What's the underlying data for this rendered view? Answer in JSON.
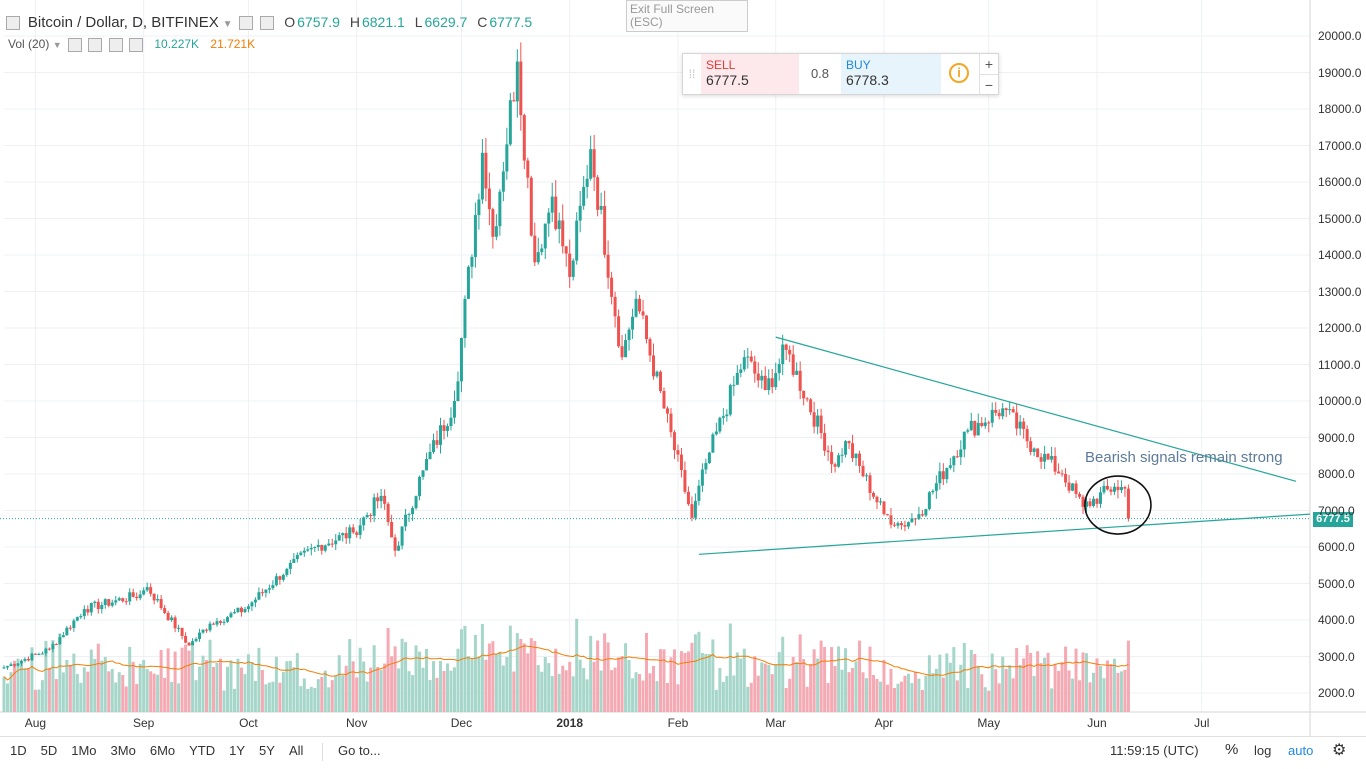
{
  "header": {
    "symbol": "Bitcoin / Dollar, D, BITFINEX",
    "open_key": "O",
    "open": "6757.9",
    "high_key": "H",
    "high": "6821.1",
    "low_key": "L",
    "low": "6629.7",
    "close_key": "C",
    "close": "6777.5"
  },
  "volume_legend": {
    "label": "Vol (20)",
    "vol": "10.227K",
    "ma": "21.721K"
  },
  "exit_fullscreen": {
    "line1": "Exit Full Screen",
    "line2": "(ESC)"
  },
  "trade": {
    "sell_label": "SELL",
    "sell_value": "6777.5",
    "spread": "0.8",
    "buy_label": "BUY",
    "buy_value": "6778.3",
    "plus": "+",
    "minus": "−",
    "info": "i"
  },
  "annotation": "Bearish signals remain strong",
  "price_tag": "6777.5",
  "bottombar": {
    "ranges": [
      "1D",
      "5D",
      "1Mo",
      "3Mo",
      "6Mo",
      "YTD",
      "1Y",
      "5Y",
      "All"
    ],
    "goto": "Go to...",
    "clock": "11:59:15 (UTC)",
    "percent": "%",
    "log": "log",
    "auto": "auto"
  },
  "colors": {
    "up": "#26a69a",
    "down": "#ef5350",
    "trend": "#26a69a",
    "ma": "#f57c00",
    "annotation_text": "#5d7b99"
  },
  "chart_data": {
    "type": "candlestick",
    "title": "Bitcoin / Dollar, D, BITFINEX",
    "ylim": [
      1500,
      20500
    ],
    "y_ticks": [
      2000,
      3000,
      4000,
      5000,
      6000,
      7000,
      8000,
      9000,
      10000,
      11000,
      12000,
      13000,
      14000,
      15000,
      16000,
      17000,
      18000,
      19000,
      20000
    ],
    "y_tick_labels": [
      "2000.0",
      "3000.0",
      "4000.0",
      "5000.0",
      "6000.0",
      "7000.0",
      "8000.0",
      "9000.0",
      "10000.0",
      "11000.0",
      "12000.0",
      "13000.0",
      "14000.0",
      "15000.0",
      "16000.0",
      "17000.0",
      "18000.0",
      "19000.0",
      "20000.0"
    ],
    "x_ticks": [
      {
        "label": "Aug",
        "date": "2017-08-01"
      },
      {
        "label": "Sep",
        "date": "2017-09-01"
      },
      {
        "label": "Oct",
        "date": "2017-10-01"
      },
      {
        "label": "Nov",
        "date": "2017-11-01"
      },
      {
        "label": "Dec",
        "date": "2017-12-01"
      },
      {
        "label": "2018",
        "date": "2018-01-01",
        "bold": true
      },
      {
        "label": "Feb",
        "date": "2018-02-01"
      },
      {
        "label": "Mar",
        "date": "2018-03-01"
      },
      {
        "label": "Apr",
        "date": "2018-04-01"
      },
      {
        "label": "May",
        "date": "2018-05-01"
      },
      {
        "label": "Jun",
        "date": "2018-06-01"
      },
      {
        "label": "Jul",
        "date": "2018-07-01"
      }
    ],
    "x_range": [
      "2017-07-23",
      "2018-08-01"
    ],
    "anchors": [
      {
        "date": "2017-07-23",
        "close": 2700
      },
      {
        "date": "2017-08-05",
        "close": 3200
      },
      {
        "date": "2017-08-15",
        "close": 4300
      },
      {
        "date": "2017-08-31",
        "close": 4700
      },
      {
        "date": "2017-09-02",
        "close": 4900
      },
      {
        "date": "2017-09-14",
        "close": 3300
      },
      {
        "date": "2017-09-20",
        "close": 3900
      },
      {
        "date": "2017-09-30",
        "close": 4300
      },
      {
        "date": "2017-10-12",
        "close": 5400
      },
      {
        "date": "2017-10-20",
        "close": 6000
      },
      {
        "date": "2017-10-31",
        "close": 6400
      },
      {
        "date": "2017-11-08",
        "close": 7400
      },
      {
        "date": "2017-11-12",
        "close": 5900
      },
      {
        "date": "2017-11-20",
        "close": 8100
      },
      {
        "date": "2017-11-29",
        "close": 10000
      },
      {
        "date": "2017-12-07",
        "close": 16800
      },
      {
        "date": "2017-12-10",
        "close": 14500
      },
      {
        "date": "2017-12-17",
        "close": 19300
      },
      {
        "date": "2017-12-22",
        "close": 13800
      },
      {
        "date": "2017-12-27",
        "close": 15600
      },
      {
        "date": "2018-01-01",
        "close": 13400
      },
      {
        "date": "2018-01-07",
        "close": 16900
      },
      {
        "date": "2018-01-16",
        "close": 11200
      },
      {
        "date": "2018-01-20",
        "close": 12800
      },
      {
        "date": "2018-02-05",
        "close": 6800
      },
      {
        "date": "2018-02-09",
        "close": 8300
      },
      {
        "date": "2018-02-20",
        "close": 11200
      },
      {
        "date": "2018-02-26",
        "close": 10300
      },
      {
        "date": "2018-03-04",
        "close": 11400
      },
      {
        "date": "2018-03-18",
        "close": 8200
      },
      {
        "date": "2018-03-21",
        "close": 8900
      },
      {
        "date": "2018-04-01",
        "close": 6900
      },
      {
        "date": "2018-04-06",
        "close": 6600
      },
      {
        "date": "2018-04-11",
        "close": 6900
      },
      {
        "date": "2018-04-25",
        "close": 9200
      },
      {
        "date": "2018-05-05",
        "close": 9800
      },
      {
        "date": "2018-05-14",
        "close": 8700
      },
      {
        "date": "2018-05-22",
        "close": 8000
      },
      {
        "date": "2018-05-28",
        "close": 7100
      },
      {
        "date": "2018-06-06",
        "close": 7650
      },
      {
        "date": "2018-06-09",
        "close": 7600
      },
      {
        "date": "2018-06-10",
        "close": 6777.5
      }
    ],
    "volume": {
      "label": "Vol (20)",
      "last_value": "10.227K",
      "ma_value": "21.721K",
      "note": "volume bars scale separately in lower panel"
    },
    "trendlines": [
      {
        "name": "descending resistance",
        "from": {
          "date": "2018-03-01",
          "value": 11750
        },
        "to": {
          "date": "2018-07-28",
          "value": 7800
        }
      },
      {
        "name": "ascending support",
        "from": {
          "date": "2018-02-07",
          "value": 5800
        },
        "to": {
          "date": "2018-08-01",
          "value": 6900
        }
      }
    ],
    "current_price_line": 6777.5,
    "grid": true
  }
}
